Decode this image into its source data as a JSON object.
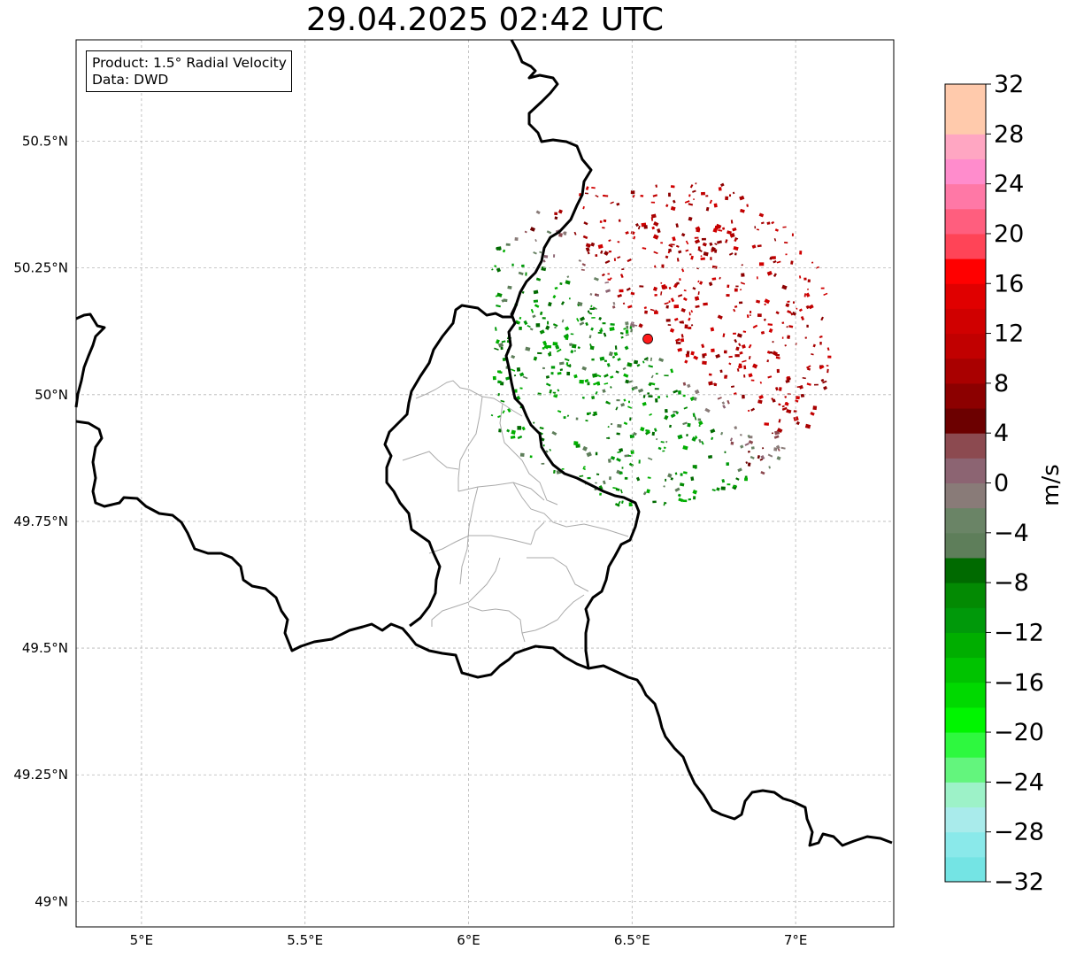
{
  "title": "29.04.2025 02:42 UTC",
  "info": {
    "product": "Product: 1.5° Radial Velocity",
    "source": "Data: DWD"
  },
  "map": {
    "lon_range": [
      4.8,
      7.3
    ],
    "lat_range": [
      48.95,
      50.7
    ],
    "lon_ticks": [
      {
        "value": 5.0,
        "label": "5°E"
      },
      {
        "value": 5.5,
        "label": "5.5°E"
      },
      {
        "value": 6.0,
        "label": "6°E"
      },
      {
        "value": 6.5,
        "label": "6.5°E"
      },
      {
        "value": 7.0,
        "label": "7°E"
      }
    ],
    "lat_ticks": [
      {
        "value": 49.0,
        "label": "49°N"
      },
      {
        "value": 49.25,
        "label": "49.25°N"
      },
      {
        "value": 49.5,
        "label": "49.5°N"
      },
      {
        "value": 49.75,
        "label": "49.75°N"
      },
      {
        "value": 50.0,
        "label": "50°N"
      },
      {
        "value": 50.25,
        "label": "50.25°N"
      },
      {
        "value": 50.5,
        "label": "50.5°N"
      }
    ],
    "radar_site": {
      "lon": 6.548,
      "lat": 50.11,
      "color": "#ff1a1a"
    },
    "border_color": "#000000",
    "region_color": "#aaaaaa",
    "grid": true
  },
  "colorbar": {
    "unit": "m/s",
    "min": -32,
    "max": 32,
    "step": 4,
    "tick_labels": [
      "32",
      "28",
      "24",
      "20",
      "16",
      "12",
      "8",
      "4",
      "0",
      "−4",
      "−8",
      "−12",
      "−16",
      "−20",
      "−24",
      "−28",
      "−32"
    ],
    "colors": [
      "#74e4e4",
      "#8ae9ea",
      "#a9ebeb",
      "#9df2c8",
      "#63f57d",
      "#2ef83f",
      "#00f500",
      "#00d900",
      "#00c300",
      "#00ae00",
      "#00990a",
      "#038a03",
      "#006a00",
      "#5e7e5a",
      "#6a8466",
      "#897b78",
      "#8c6472",
      "#8c4a50",
      "#6c0000",
      "#8c0000",
      "#a90000",
      "#c10000",
      "#d00000",
      "#e00000",
      "#ff0000",
      "#ff4457",
      "#ff5e7e",
      "#ff78a6",
      "#ff8ccc",
      "#ffa6c2",
      "#ffcaac",
      "#ffcaac"
    ]
  }
}
